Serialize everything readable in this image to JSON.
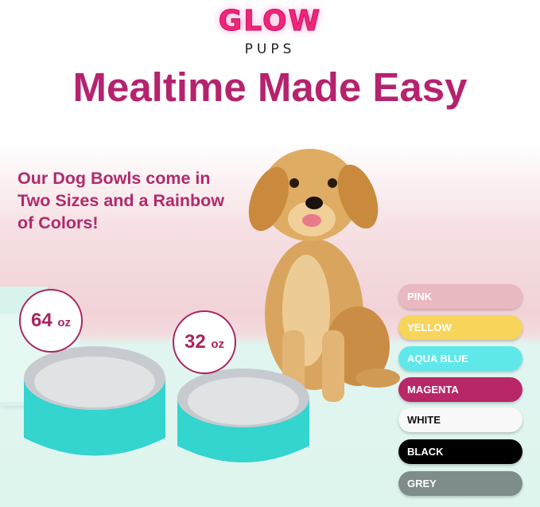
{
  "brand": {
    "logo": "GLOW",
    "sub": "PUPS"
  },
  "headline": "Mealtime Made Easy",
  "subheadline": "Our Dog Bowls come in Two Sizes and a Rainbow of Colors!",
  "sizes": [
    {
      "value": "64",
      "unit": "oz"
    },
    {
      "value": "32",
      "unit": "oz"
    }
  ],
  "colors": [
    {
      "label": "PINK",
      "bg": "#e9b8c0",
      "fg": "#ffffff"
    },
    {
      "label": "YELLOW",
      "bg": "#f7d55a",
      "fg": "#ffffff"
    },
    {
      "label": "AQUA BLUE",
      "bg": "#5fe8ea",
      "fg": "#ffffff"
    },
    {
      "label": "MAGENTA",
      "bg": "#b82767",
      "fg": "#ffffff"
    },
    {
      "label": "WHITE",
      "bg": "#f8f8f8",
      "fg": "#111111"
    },
    {
      "label": "BLACK",
      "bg": "#000000",
      "fg": "#ffffff"
    },
    {
      "label": "GREY",
      "bg": "#7f8c8c",
      "fg": "#ffffff"
    }
  ],
  "accent": "#b5236e"
}
